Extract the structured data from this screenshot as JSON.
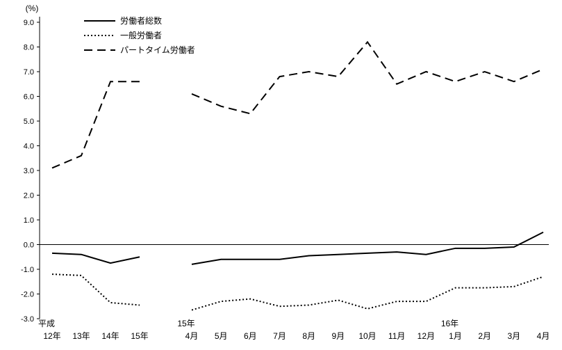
{
  "chart_data": {
    "type": "line",
    "title": "",
    "unit_label": "(%)",
    "ylabel": "",
    "xlabel": "",
    "ylim": [
      -3.0,
      9.0
    ],
    "ytick_step": 1.0,
    "grid": false,
    "legend_position": "top-left",
    "x_labels": [
      "12年",
      "13年",
      "14年",
      "15年",
      "4月",
      "5月",
      "6月",
      "7月",
      "8月",
      "9月",
      "10月",
      "11月",
      "12月",
      "1月",
      "2月",
      "3月",
      "4月"
    ],
    "x_gap_after_index": 3,
    "era_labels": [
      {
        "label": "平成",
        "index": 0
      },
      {
        "label": "15年",
        "index": 4
      },
      {
        "label": "16年",
        "index": 13
      }
    ],
    "line_color": "#000000",
    "series": [
      {
        "id": "total-workers",
        "name": "労働者総数",
        "line_style": "solid",
        "values": [
          -0.35,
          -0.4,
          -0.75,
          -0.5,
          -0.8,
          -0.6,
          -0.6,
          -0.6,
          -0.45,
          -0.4,
          -0.35,
          -0.3,
          -0.4,
          -0.15,
          -0.15,
          -0.1,
          0.5
        ]
      },
      {
        "id": "general-workers",
        "name": "一般労働者",
        "line_style": "dotted",
        "values": [
          -1.2,
          -1.25,
          -2.35,
          -2.45,
          -2.65,
          -2.3,
          -2.2,
          -2.5,
          -2.45,
          -2.25,
          -2.6,
          -2.3,
          -2.3,
          -1.75,
          -1.75,
          -1.7,
          -1.3
        ]
      },
      {
        "id": "part-time-workers",
        "name": "パートタイム労働者",
        "line_style": "dashed",
        "values": [
          3.1,
          3.6,
          6.6,
          6.6,
          6.1,
          5.6,
          5.3,
          6.8,
          7.0,
          6.8,
          8.2,
          6.5,
          7.0,
          6.6,
          7.0,
          6.6,
          7.1
        ]
      }
    ]
  }
}
